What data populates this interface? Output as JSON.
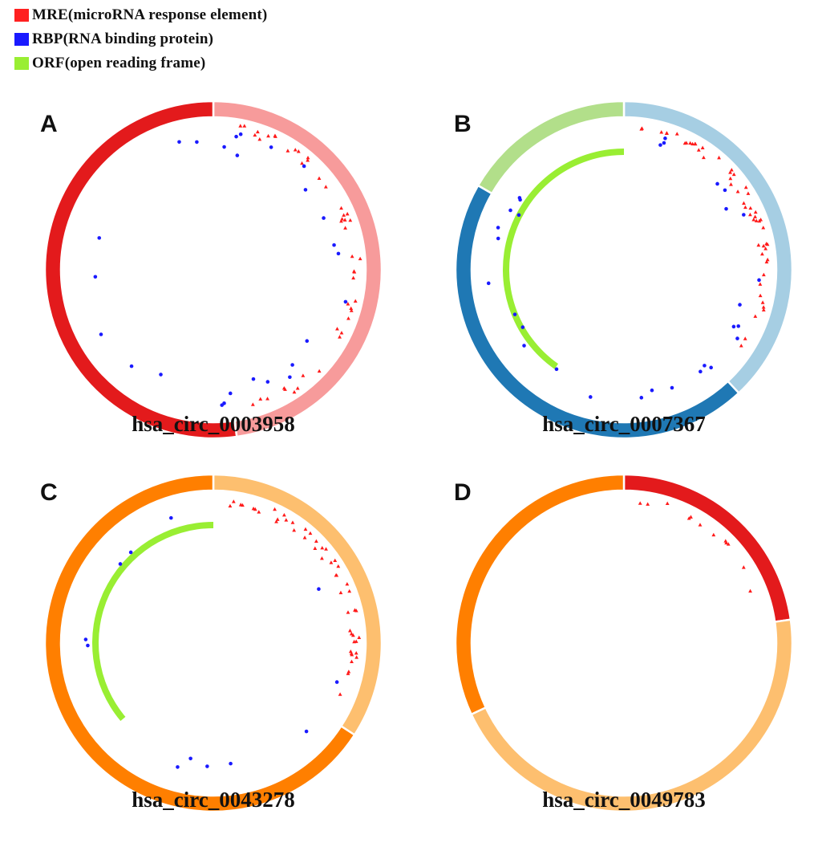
{
  "legend": [
    {
      "label": "MRE(microRNA response element)",
      "color": "#ff2020"
    },
    {
      "label": "RBP(RNA binding protein)",
      "color": "#1a1aff"
    },
    {
      "label": "ORF(open reading frame)",
      "color": "#99ee33"
    }
  ],
  "panels": [
    {
      "letter": "A",
      "title": "hsa_circ_0003958",
      "segments": [
        {
          "start": 0,
          "end": 172,
          "color": "#f79b9b"
        },
        {
          "start": 172,
          "end": 360,
          "color": "#e31a1c"
        }
      ],
      "has_orf": false,
      "mre_count": 46,
      "rbp_count": 26
    },
    {
      "letter": "B",
      "title": "hsa_circ_0007367",
      "segments": [
        {
          "start": 0,
          "end": 137,
          "color": "#a6cee3"
        },
        {
          "start": 137,
          "end": 300,
          "color": "#1f78b4"
        },
        {
          "start": 300,
          "end": 360,
          "color": "#b2df8a"
        }
      ],
      "has_orf": true,
      "orf": {
        "start": 0,
        "end": 145
      },
      "mre_count": 52,
      "rbp_count": 30
    },
    {
      "letter": "C",
      "title": "hsa_circ_0043278",
      "segments": [
        {
          "start": 0,
          "end": 123,
          "color": "#fdbf6f"
        },
        {
          "start": 123,
          "end": 360,
          "color": "#ff7f00"
        }
      ],
      "has_orf": true,
      "orf": {
        "start": 0,
        "end": 130
      },
      "mre_count": 48,
      "rbp_count": 12
    },
    {
      "letter": "D",
      "title": "hsa_circ_0049783",
      "segments": [
        {
          "start": 0,
          "end": 82,
          "color": "#e31a1c"
        },
        {
          "start": 82,
          "end": 245,
          "color": "#fdbf6f"
        },
        {
          "start": 245,
          "end": 360,
          "color": "#ff7f00"
        }
      ],
      "has_orf": false,
      "mre_count": 12,
      "rbp_count": 0
    }
  ]
}
